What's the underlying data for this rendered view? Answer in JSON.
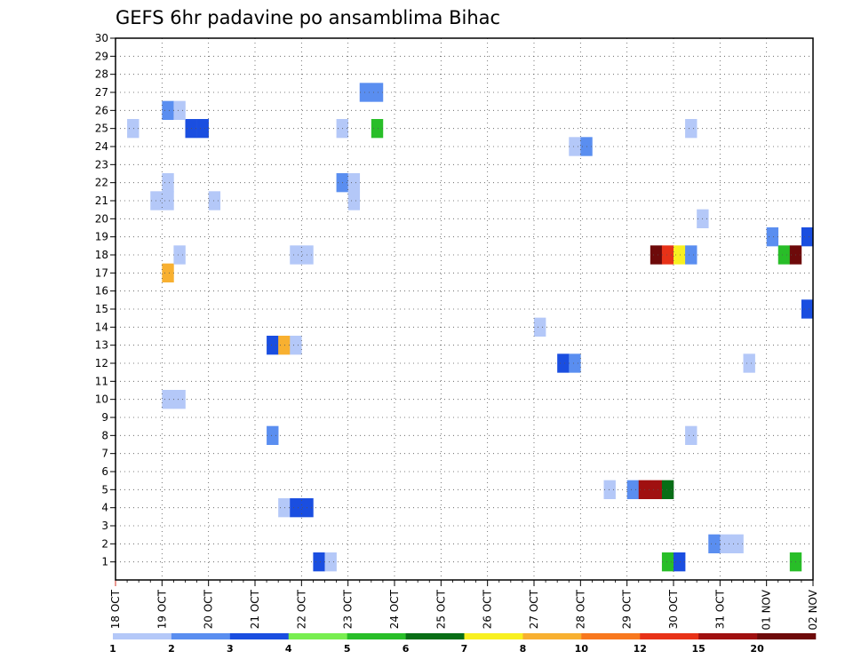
{
  "chart_data": {
    "type": "heatmap",
    "title": "GEFS 6hr padavine po ansamblima Bihac",
    "x_tick_labels": [
      "18 OCT",
      "19 OCT",
      "20 OCT",
      "21 OCT",
      "22 OCT",
      "23 OCT",
      "24 OCT",
      "25 OCT",
      "26 OCT",
      "27 OCT",
      "28 OCT",
      "29 OCT",
      "30 OCT",
      "31 OCT",
      "01 NOV",
      "02 NOV"
    ],
    "y_ticks": [
      1,
      2,
      3,
      4,
      5,
      6,
      7,
      8,
      9,
      10,
      11,
      12,
      13,
      14,
      15,
      16,
      17,
      18,
      19,
      20,
      21,
      22,
      23,
      24,
      25,
      26,
      27,
      28,
      29,
      30
    ],
    "x_range_days": [
      0,
      15
    ],
    "y_range": [
      0,
      30
    ],
    "time_step_hours": 6,
    "grid": "dotted",
    "colorbar": {
      "labels": [
        "1",
        "2",
        "3",
        "4",
        "5",
        "6",
        "7",
        "8",
        "10",
        "12",
        "15",
        "20"
      ],
      "colors": [
        "#b4c8f8",
        "#5a8ef0",
        "#1a4ee0",
        "#78ee50",
        "#28be28",
        "#086e16",
        "#f8f020",
        "#f8b030",
        "#f8781e",
        "#e83218",
        "#a01010",
        "#6e0a0a"
      ]
    },
    "cells": [
      {
        "member": 1,
        "step": 17,
        "value": 3
      },
      {
        "member": 1,
        "step": 18,
        "value": 1
      },
      {
        "member": 1,
        "step": 47,
        "value": 5
      },
      {
        "member": 1,
        "step": 48,
        "value": 3
      },
      {
        "member": 1,
        "step": 58,
        "value": 5
      },
      {
        "member": 2,
        "step": 51,
        "value": 2
      },
      {
        "member": 2,
        "step": 52,
        "value": 1
      },
      {
        "member": 2,
        "step": 53,
        "value": 1
      },
      {
        "member": 4,
        "step": 14,
        "value": 1
      },
      {
        "member": 4,
        "step": 15,
        "value": 3
      },
      {
        "member": 4,
        "step": 16,
        "value": 3
      },
      {
        "member": 5,
        "step": 42,
        "value": 1
      },
      {
        "member": 5,
        "step": 44,
        "value": 2
      },
      {
        "member": 5,
        "step": 45,
        "value": 15
      },
      {
        "member": 5,
        "step": 46,
        "value": 15
      },
      {
        "member": 5,
        "step": 47,
        "value": 6
      },
      {
        "member": 8,
        "step": 13,
        "value": 2
      },
      {
        "member": 8,
        "step": 49,
        "value": 1
      },
      {
        "member": 10,
        "step": 4,
        "value": 1
      },
      {
        "member": 10,
        "step": 5,
        "value": 1
      },
      {
        "member": 12,
        "step": 38,
        "value": 3
      },
      {
        "member": 12,
        "step": 39,
        "value": 2
      },
      {
        "member": 12,
        "step": 54,
        "value": 1
      },
      {
        "member": 13,
        "step": 13,
        "value": 3
      },
      {
        "member": 13,
        "step": 14,
        "value": 8
      },
      {
        "member": 13,
        "step": 15,
        "value": 1
      },
      {
        "member": 14,
        "step": 36,
        "value": 1
      },
      {
        "member": 15,
        "step": 59,
        "value": 3
      },
      {
        "member": 17,
        "step": 4,
        "value": 8
      },
      {
        "member": 18,
        "step": 5,
        "value": 1
      },
      {
        "member": 18,
        "step": 15,
        "value": 1
      },
      {
        "member": 18,
        "step": 16,
        "value": 1
      },
      {
        "member": 18,
        "step": 46,
        "value": 20
      },
      {
        "member": 18,
        "step": 47,
        "value": 12
      },
      {
        "member": 18,
        "step": 48,
        "value": 7
      },
      {
        "member": 18,
        "step": 49,
        "value": 2
      },
      {
        "member": 18,
        "step": 57,
        "value": 5
      },
      {
        "member": 18,
        "step": 58,
        "value": 20
      },
      {
        "member": 19,
        "step": 56,
        "value": 2
      },
      {
        "member": 19,
        "step": 59,
        "value": 3
      },
      {
        "member": 20,
        "step": 50,
        "value": 1
      },
      {
        "member": 21,
        "step": 3,
        "value": 1
      },
      {
        "member": 21,
        "step": 4,
        "value": 1
      },
      {
        "member": 21,
        "step": 8,
        "value": 1
      },
      {
        "member": 21,
        "step": 20,
        "value": 1
      },
      {
        "member": 22,
        "step": 4,
        "value": 1
      },
      {
        "member": 22,
        "step": 19,
        "value": 2
      },
      {
        "member": 22,
        "step": 20,
        "value": 1
      },
      {
        "member": 24,
        "step": 39,
        "value": 1
      },
      {
        "member": 24,
        "step": 40,
        "value": 2
      },
      {
        "member": 25,
        "step": 1,
        "value": 1
      },
      {
        "member": 25,
        "step": 6,
        "value": 3
      },
      {
        "member": 25,
        "step": 7,
        "value": 3
      },
      {
        "member": 25,
        "step": 19,
        "value": 1
      },
      {
        "member": 25,
        "step": 22,
        "value": 5
      },
      {
        "member": 25,
        "step": 49,
        "value": 1
      },
      {
        "member": 26,
        "step": 4,
        "value": 2
      },
      {
        "member": 26,
        "step": 5,
        "value": 1
      },
      {
        "member": 27,
        "step": 21,
        "value": 2
      },
      {
        "member": 27,
        "step": 22,
        "value": 2
      }
    ]
  }
}
